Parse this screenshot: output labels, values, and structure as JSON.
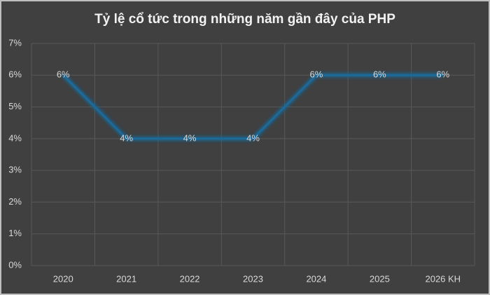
{
  "chart_data": {
    "type": "line",
    "title": "Tỷ lệ cổ tức trong những năm gần đây của PHP",
    "categories": [
      "2020",
      "2021",
      "2022",
      "2023",
      "2024",
      "2025",
      "2026 KH"
    ],
    "values": [
      6,
      4,
      4,
      4,
      6,
      6,
      6
    ],
    "value_labels": [
      "6%",
      "4%",
      "4%",
      "4%",
      "6%",
      "6%",
      "6%"
    ],
    "color": "#1f6a9a",
    "ylim": [
      0,
      7
    ],
    "yticks": [
      {
        "value": 0,
        "label": "0%"
      },
      {
        "value": 1,
        "label": "1%"
      },
      {
        "value": 2,
        "label": "2%"
      },
      {
        "value": 3,
        "label": "3%"
      },
      {
        "value": 4,
        "label": "4%"
      },
      {
        "value": 5,
        "label": "5%"
      },
      {
        "value": 6,
        "label": "6%"
      },
      {
        "value": 7,
        "label": "7%"
      }
    ],
    "grid": true
  }
}
